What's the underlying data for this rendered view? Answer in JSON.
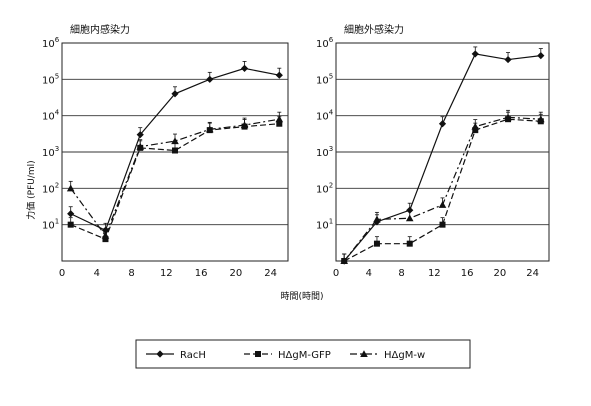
{
  "chart_data": [
    {
      "type": "line",
      "title": "細胞内感染力",
      "xlabel": "時間(時間)",
      "ylabel": "力価 (PFU/ml)",
      "yscale": "log",
      "xlim": [
        0,
        26
      ],
      "ylim_log10": [
        0,
        6
      ],
      "x_ticks": [
        "0",
        "4",
        "8",
        "12",
        "16",
        "20",
        "24"
      ],
      "y_ticks": [
        "10^1",
        "10^2",
        "10^3",
        "10^4",
        "10^5",
        "10^6"
      ],
      "grid": "horizontal",
      "series": [
        {
          "name": "RacH",
          "x": [
            1,
            5,
            9,
            13,
            17,
            21,
            25
          ],
          "y": [
            20,
            7,
            3000,
            40000,
            100000,
            200000,
            130000
          ],
          "line": "solid",
          "marker": "diamond"
        },
        {
          "name": "HΔgM-GFP",
          "x": [
            1,
            5,
            9,
            13,
            17,
            21,
            25
          ],
          "y": [
            10,
            4,
            1300,
            1100,
            4000,
            5000,
            6000
          ],
          "line": "dashed",
          "marker": "circle"
        },
        {
          "name": "HΔgM-w",
          "x": [
            1,
            5,
            9,
            13,
            17,
            21,
            25
          ],
          "y": [
            100,
            5,
            1400,
            2000,
            4200,
            5500,
            8000
          ],
          "line": "dashdot",
          "marker": "triangle"
        }
      ]
    },
    {
      "type": "line",
      "title": "細胞外感染力",
      "xlabel": "",
      "ylabel": "",
      "yscale": "log",
      "xlim": [
        0,
        26
      ],
      "ylim_log10": [
        0,
        6
      ],
      "x_ticks": [
        "0",
        "4",
        "8",
        "12",
        "16",
        "20",
        "24"
      ],
      "y_ticks": [
        "10^1",
        "10^2",
        "10^3",
        "10^4",
        "10^5",
        "10^6"
      ],
      "grid": "horizontal",
      "series": [
        {
          "name": "RacH",
          "x": [
            1,
            5,
            9,
            13,
            17,
            21,
            25
          ],
          "y": [
            1,
            12,
            25,
            6000,
            500000,
            350000,
            450000
          ],
          "line": "solid",
          "marker": "diamond"
        },
        {
          "name": "HΔgM-GFP",
          "x": [
            1,
            5,
            9,
            13,
            17,
            21,
            25
          ],
          "y": [
            1,
            3,
            3,
            10,
            4000,
            8000,
            7000
          ],
          "line": "dashed",
          "marker": "circle"
        },
        {
          "name": "HΔgM-w",
          "x": [
            1,
            5,
            9,
            13,
            17,
            21,
            25
          ],
          "y": [
            1,
            14,
            15,
            35,
            5000,
            9000,
            8000
          ],
          "line": "dashdot",
          "marker": "triangle"
        }
      ]
    }
  ],
  "legend": {
    "placement": "bottom-center",
    "items": [
      {
        "label": "RacH"
      },
      {
        "label": "HΔgM-GFP"
      },
      {
        "label": "HΔgM-w"
      }
    ]
  }
}
